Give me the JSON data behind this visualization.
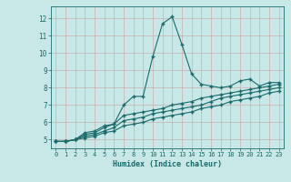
{
  "xlabel": "Humidex (Indice chaleur)",
  "ylabel": "",
  "bg_color": "#c8e8e8",
  "grid_color": "#b0c8c8",
  "line_color": "#1a6b6b",
  "xlim": [
    -0.5,
    23.5
  ],
  "ylim": [
    4.5,
    12.7
  ],
  "xticks": [
    0,
    1,
    2,
    3,
    4,
    5,
    6,
    7,
    8,
    9,
    10,
    11,
    12,
    13,
    14,
    15,
    16,
    17,
    18,
    19,
    20,
    21,
    22,
    23
  ],
  "yticks": [
    5,
    6,
    7,
    8,
    9,
    10,
    11,
    12
  ],
  "series1_x": [
    0,
    1,
    2,
    3,
    4,
    5,
    6,
    7,
    8,
    9,
    10,
    11,
    12,
    13,
    14,
    15,
    16,
    17,
    18,
    19,
    20,
    21,
    22,
    23
  ],
  "series1_y": [
    4.9,
    4.9,
    5.0,
    5.4,
    5.5,
    5.8,
    5.9,
    7.0,
    7.5,
    7.5,
    9.8,
    11.7,
    12.1,
    10.5,
    8.8,
    8.2,
    8.1,
    8.0,
    8.1,
    8.4,
    8.5,
    8.1,
    8.3,
    8.3
  ],
  "series2_x": [
    0,
    1,
    2,
    3,
    4,
    5,
    6,
    7,
    8,
    9,
    10,
    11,
    12,
    13,
    14,
    15,
    16,
    17,
    18,
    19,
    20,
    21,
    22,
    23
  ],
  "series2_y": [
    4.9,
    4.9,
    5.0,
    5.3,
    5.4,
    5.7,
    5.9,
    6.4,
    6.5,
    6.6,
    6.7,
    6.8,
    7.0,
    7.1,
    7.2,
    7.4,
    7.5,
    7.6,
    7.7,
    7.8,
    7.9,
    8.0,
    8.1,
    8.2
  ],
  "series3_x": [
    0,
    1,
    2,
    3,
    4,
    5,
    6,
    7,
    8,
    9,
    10,
    11,
    12,
    13,
    14,
    15,
    16,
    17,
    18,
    19,
    20,
    21,
    22,
    23
  ],
  "series3_y": [
    4.9,
    4.9,
    5.0,
    5.2,
    5.3,
    5.5,
    5.7,
    6.1,
    6.2,
    6.3,
    6.5,
    6.6,
    6.7,
    6.8,
    6.9,
    7.0,
    7.2,
    7.4,
    7.5,
    7.6,
    7.7,
    7.8,
    7.9,
    8.0
  ],
  "series4_x": [
    0,
    1,
    2,
    3,
    4,
    5,
    6,
    7,
    8,
    9,
    10,
    11,
    12,
    13,
    14,
    15,
    16,
    17,
    18,
    19,
    20,
    21,
    22,
    23
  ],
  "series4_y": [
    4.9,
    4.9,
    5.0,
    5.1,
    5.2,
    5.4,
    5.5,
    5.8,
    5.9,
    6.0,
    6.2,
    6.3,
    6.4,
    6.5,
    6.6,
    6.8,
    6.9,
    7.0,
    7.2,
    7.3,
    7.4,
    7.5,
    7.7,
    7.8
  ]
}
